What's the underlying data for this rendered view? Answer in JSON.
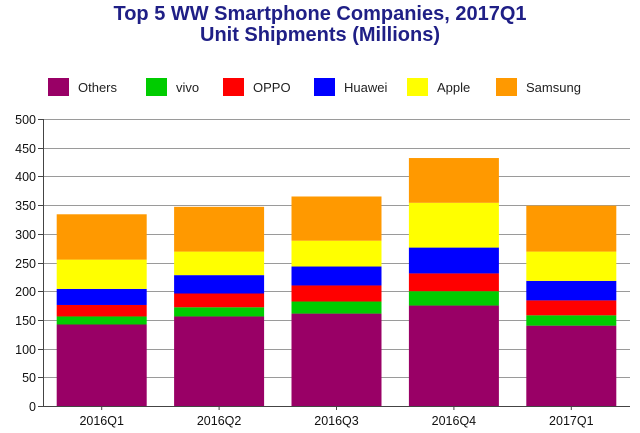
{
  "chart_data": {
    "type": "bar",
    "stacked": true,
    "title_lines": [
      "Top 5 WW Smartphone Companies, 2017Q1",
      "Unit Shipments (Millions)"
    ],
    "categories": [
      "2016Q1",
      "2016Q2",
      "2016Q3",
      "2016Q4",
      "2017Q1"
    ],
    "series": [
      {
        "name": "Others",
        "color": "#990066",
        "values": [
          142,
          156,
          161,
          175,
          140
        ]
      },
      {
        "name": "vivo",
        "color": "#00cc00",
        "values": [
          14,
          16,
          21,
          25,
          18
        ]
      },
      {
        "name": "OPPO",
        "color": "#ff0000",
        "values": [
          20,
          24,
          28,
          31,
          26
        ]
      },
      {
        "name": "Huawei",
        "color": "#0000ff",
        "values": [
          28,
          32,
          33,
          45,
          34
        ]
      },
      {
        "name": "Apple",
        "color": "#ffff00",
        "values": [
          51,
          41,
          45,
          78,
          51
        ]
      },
      {
        "name": "Samsung",
        "color": "#ff9900",
        "values": [
          79,
          78,
          77,
          78,
          80
        ]
      }
    ],
    "yticks": [
      0,
      50,
      100,
      150,
      200,
      250,
      300,
      350,
      400,
      450,
      500
    ],
    "ylim": [
      0,
      500
    ],
    "xlabel": "",
    "ylabel": "",
    "grid": true,
    "legend_position": "top"
  }
}
